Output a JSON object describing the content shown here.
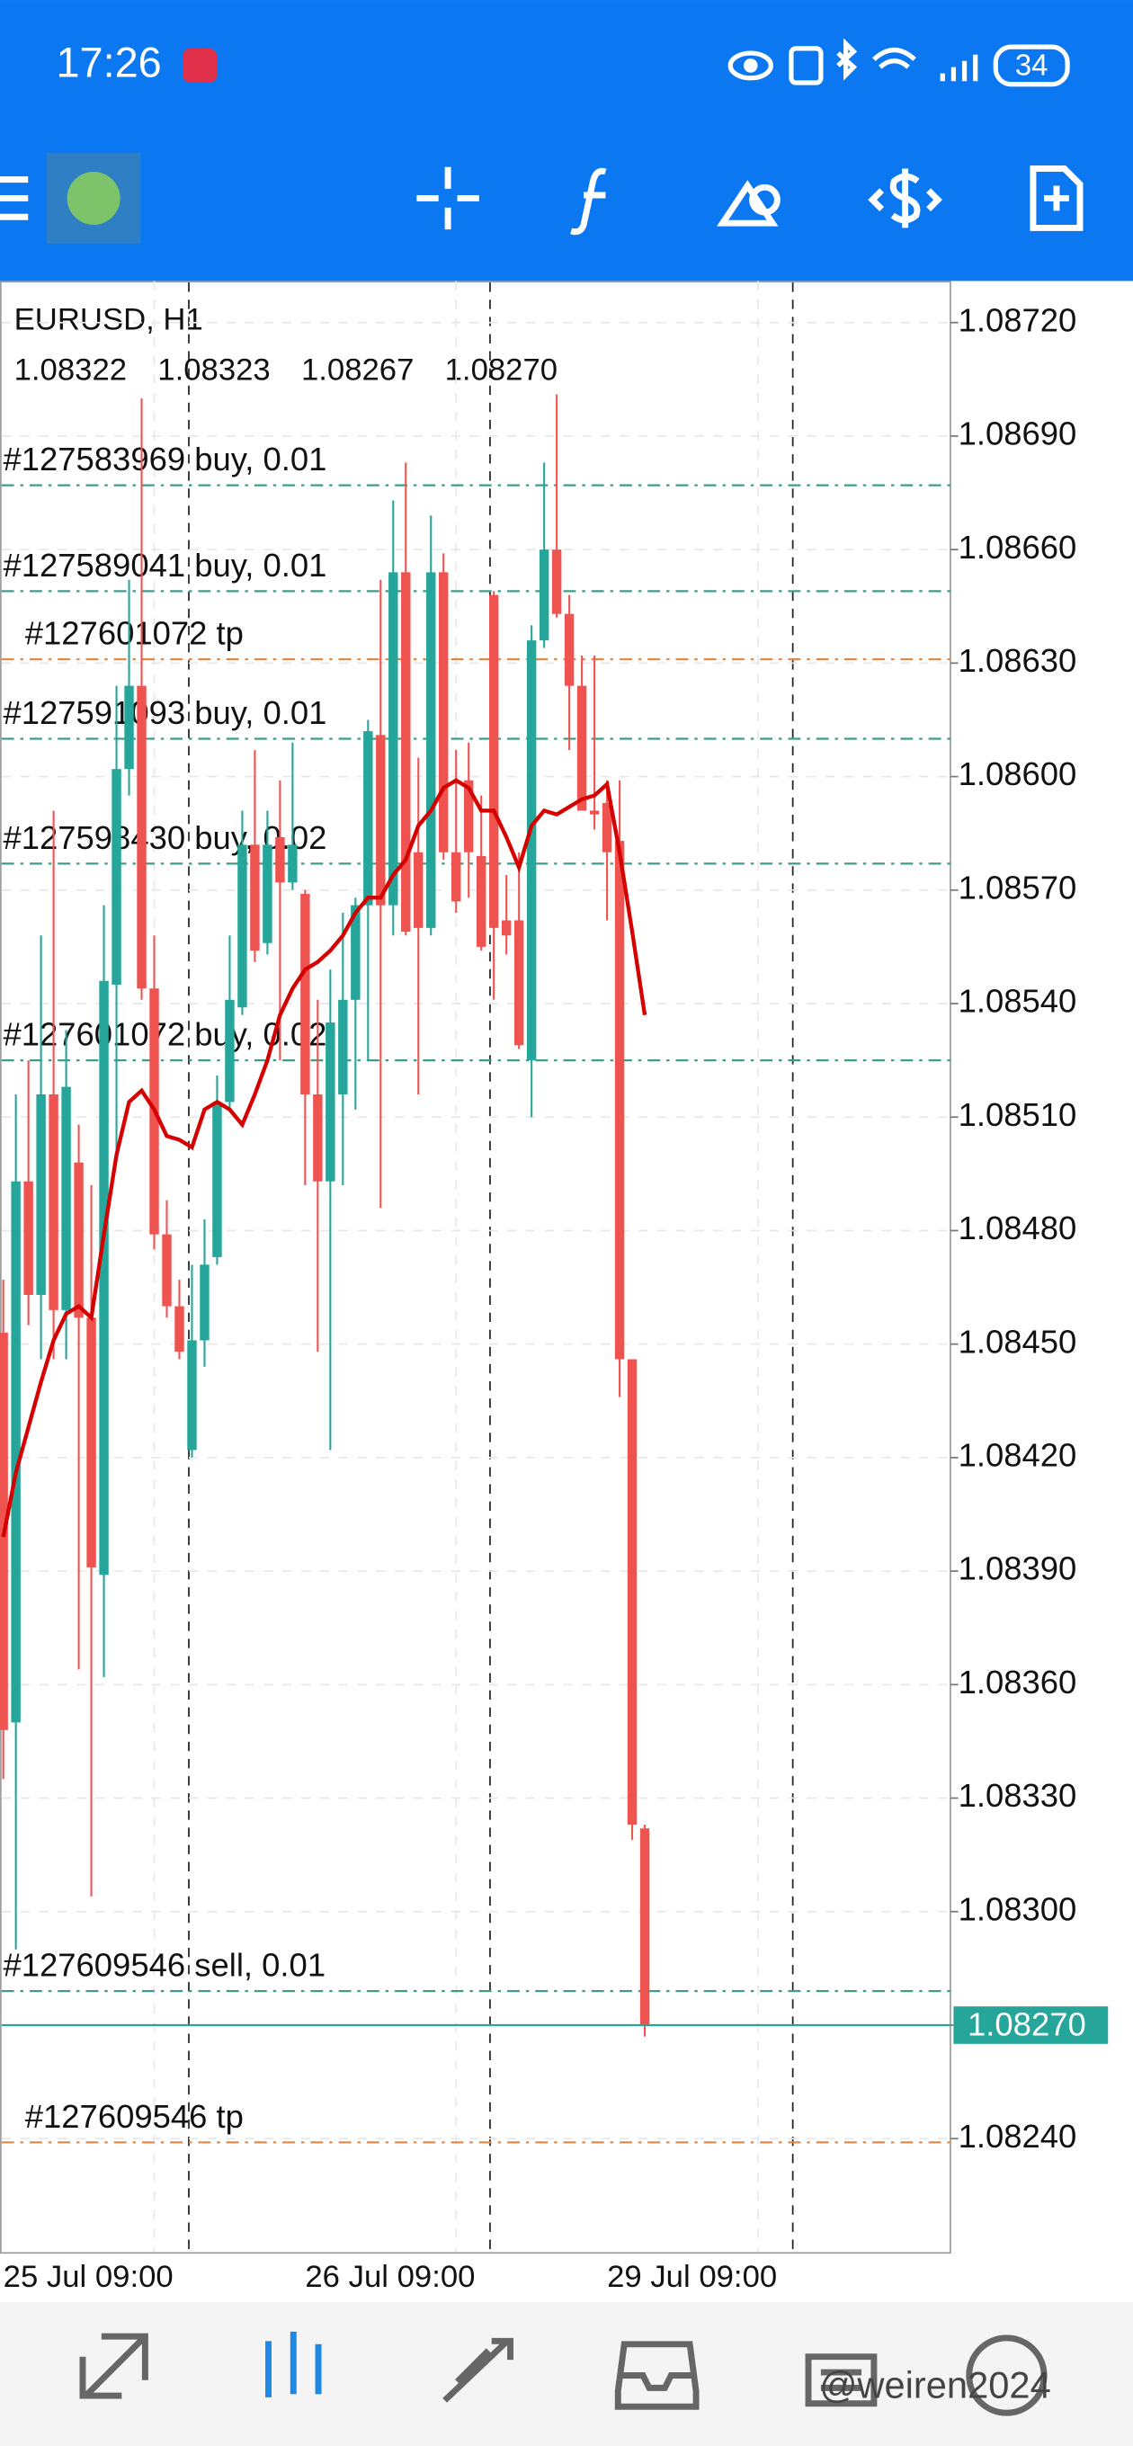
{
  "status_bar": {
    "time": "17:26",
    "battery": "34"
  },
  "watermark": "@weiren2024",
  "chart_data": {
    "type": "candlestick",
    "legend": {
      "symbol": "EURUSD, H1",
      "ohlc": [
        "1.08322",
        "1.08323",
        "1.08267",
        "1.08270"
      ]
    },
    "categories": [
      "25 Jul 09:00",
      null,
      null,
      null,
      null,
      null,
      null,
      null,
      null,
      null,
      null,
      null,
      null,
      null,
      null,
      null,
      null,
      null,
      null,
      null,
      null,
      null,
      null,
      null,
      "26 Jul 09:00",
      null,
      null,
      null,
      null,
      null,
      null,
      null,
      null,
      null,
      null,
      null,
      null,
      null,
      null,
      null,
      null,
      null,
      null,
      null,
      null,
      null,
      null,
      null,
      "29 Jul 09:00",
      null,
      null,
      null
    ],
    "open": [
      1.08453,
      1.0835,
      1.08493,
      1.08463,
      1.08516,
      1.08459,
      1.08498,
      1.08457,
      1.08389,
      1.08545,
      1.08602,
      1.08624,
      1.08544,
      1.08479,
      1.0846,
      1.08422,
      1.08451,
      1.08473,
      1.08514,
      1.08539,
      1.08582,
      1.08556,
      1.08584,
      1.08572,
      1.08569,
      1.08516,
      1.08493,
      1.08516,
      1.08541,
      1.08566,
      1.08611,
      1.08566,
      1.08654,
      1.0858,
      1.0856,
      1.08654,
      1.0858,
      1.08599,
      1.08579,
      1.08648,
      1.08562,
      1.08562,
      1.08525,
      1.08636,
      1.0866,
      1.08643,
      1.08624,
      1.08591,
      1.08593,
      1.08583,
      1.08446,
      1.08322
    ],
    "high": [
      1.08467,
      1.08516,
      1.08525,
      1.08558,
      1.08591,
      1.08533,
      1.08508,
      1.08492,
      1.08566,
      1.08624,
      1.08652,
      1.087,
      1.08558,
      1.08488,
      1.08467,
      1.08471,
      1.08483,
      1.08521,
      1.08558,
      1.08591,
      1.08607,
      1.08591,
      1.08599,
      1.08609,
      1.0857,
      1.08541,
      1.08549,
      1.08564,
      1.08568,
      1.08615,
      1.08652,
      1.08673,
      1.08683,
      1.08605,
      1.08669,
      1.08659,
      1.08607,
      1.08609,
      1.08595,
      1.08649,
      1.08574,
      1.0858,
      1.0864,
      1.08683,
      1.08701,
      1.08648,
      1.08632,
      1.08632,
      1.08599,
      1.08599,
      1.08446,
      1.08323
    ],
    "low": [
      1.08335,
      1.0829,
      1.08455,
      1.08446,
      1.08446,
      1.08446,
      1.08364,
      1.08304,
      1.08362,
      1.085,
      1.08595,
      1.08541,
      1.08475,
      1.08457,
      1.08446,
      1.0842,
      1.08444,
      1.08471,
      1.08512,
      1.08537,
      1.08551,
      1.08553,
      1.08525,
      1.0857,
      1.08492,
      1.08448,
      1.08422,
      1.08492,
      1.08512,
      1.08525,
      1.08486,
      1.08558,
      1.08558,
      1.08516,
      1.08558,
      1.08578,
      1.08564,
      1.08568,
      1.08554,
      1.08541,
      1.08553,
      1.08528,
      1.0851,
      1.08634,
      1.08642,
      1.08607,
      1.08591,
      1.08586,
      1.08562,
      1.08436,
      1.08319,
      1.08267
    ],
    "close": [
      1.08348,
      1.08493,
      1.08463,
      1.08516,
      1.08459,
      1.08518,
      1.08457,
      1.08391,
      1.08546,
      1.08602,
      1.08624,
      1.08544,
      1.08479,
      1.0846,
      1.08448,
      1.08451,
      1.08471,
      1.08514,
      1.08541,
      1.08582,
      1.08554,
      1.08582,
      1.08572,
      1.08582,
      1.08516,
      1.08493,
      1.08535,
      1.08541,
      1.08566,
      1.08612,
      1.08566,
      1.08654,
      1.08559,
      1.0856,
      1.08654,
      1.0858,
      1.08567,
      1.0858,
      1.08555,
      1.0856,
      1.08558,
      1.08529,
      1.08636,
      1.0866,
      1.08643,
      1.08624,
      1.08591,
      1.0859,
      1.0858,
      1.08446,
      1.08323,
      1.0827
    ],
    "up_color": "#26a69a",
    "down_color": "#ef5350",
    "ma": {
      "color": "#d50000",
      "values": [
        1.08399,
        1.08416,
        1.08428,
        1.0844,
        1.08451,
        1.08458,
        1.0846,
        1.08457,
        1.08479,
        1.085,
        1.08514,
        1.08517,
        1.08512,
        1.08505,
        1.08504,
        1.08502,
        1.08512,
        1.08514,
        1.08512,
        1.08508,
        1.08516,
        1.08525,
        1.08537,
        1.08544,
        1.08549,
        1.08551,
        1.08554,
        1.08558,
        1.08564,
        1.08568,
        1.08568,
        1.08574,
        1.08578,
        1.08587,
        1.08591,
        1.08597,
        1.08599,
        1.08597,
        1.08591,
        1.08591,
        1.08584,
        1.08576,
        1.08587,
        1.08591,
        1.0859,
        1.08592,
        1.08594,
        1.08595,
        1.08598,
        1.0858,
        1.08559,
        1.08537
      ]
    },
    "orders": [
      {
        "label": "#127583969 buy, 0.01",
        "price": 1.08677,
        "color": "#3f9c8a"
      },
      {
        "label": "#127589041 buy, 0.01",
        "price": 1.08649,
        "color": "#3f9c8a"
      },
      {
        "label": "#127601072 tp",
        "price": 1.08631,
        "color": "#e08a4c"
      },
      {
        "label": "#127591093 buy, 0.01",
        "price": 1.0861,
        "color": "#3f9c8a"
      },
      {
        "label": "#127598430 buy, 0.02",
        "price": 1.08577,
        "color": "#3f9c8a"
      },
      {
        "label": "#127601072 buy, 0.02",
        "price": 1.08525,
        "color": "#3f9c8a"
      },
      {
        "label": "#127609546 sell, 0.01",
        "price": 1.08279,
        "color": "#3f9c8a"
      },
      {
        "label": "#127609546 tp",
        "price": 1.08239,
        "color": "#e08a4c"
      }
    ],
    "last_price": {
      "value": 1.0827,
      "label": "1.08270",
      "color": "#26a69a"
    },
    "ylim": [
      1.0821,
      1.08731
    ],
    "yticks": [
      {
        "value": 1.0872,
        "label": "1.08720"
      },
      {
        "value": 1.0869,
        "label": "1.08690"
      },
      {
        "value": 1.0866,
        "label": "1.08660"
      },
      {
        "value": 1.0863,
        "label": "1.08630"
      },
      {
        "value": 1.086,
        "label": "1.08600"
      },
      {
        "value": 1.0857,
        "label": "1.08570"
      },
      {
        "value": 1.0854,
        "label": "1.08540"
      },
      {
        "value": 1.0851,
        "label": "1.08510"
      },
      {
        "value": 1.0848,
        "label": "1.08480"
      },
      {
        "value": 1.0845,
        "label": "1.08450"
      },
      {
        "value": 1.0842,
        "label": "1.08420"
      },
      {
        "value": 1.0839,
        "label": "1.08390"
      },
      {
        "value": 1.0836,
        "label": "1.08360"
      },
      {
        "value": 1.0833,
        "label": "1.08330"
      },
      {
        "value": 1.083,
        "label": "1.08300"
      },
      {
        "value": 1.0827,
        "label": "1.08270"
      },
      {
        "value": 1.0824,
        "label": "1.08240"
      }
    ],
    "grid": true
  }
}
